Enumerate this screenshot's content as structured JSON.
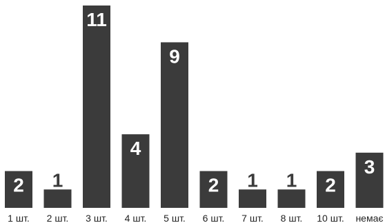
{
  "chart_data": {
    "type": "bar",
    "categories": [
      "1 шт.",
      "2 шт.",
      "3 шт.",
      "4 шт.",
      "5 шт.",
      "6 шт.",
      "7 шт.",
      "8 шт.",
      "10 шт.",
      "немає"
    ],
    "values": [
      2,
      1,
      11,
      4,
      9,
      2,
      1,
      1,
      2,
      3
    ],
    "title": "",
    "xlabel": "",
    "ylabel": "",
    "ylim": [
      0,
      11
    ],
    "grid": false,
    "legend": "none",
    "colors": {
      "bar": "#3b3b3b",
      "label_inside": "#ffffff",
      "label_outside": "#3b3b3b"
    }
  }
}
